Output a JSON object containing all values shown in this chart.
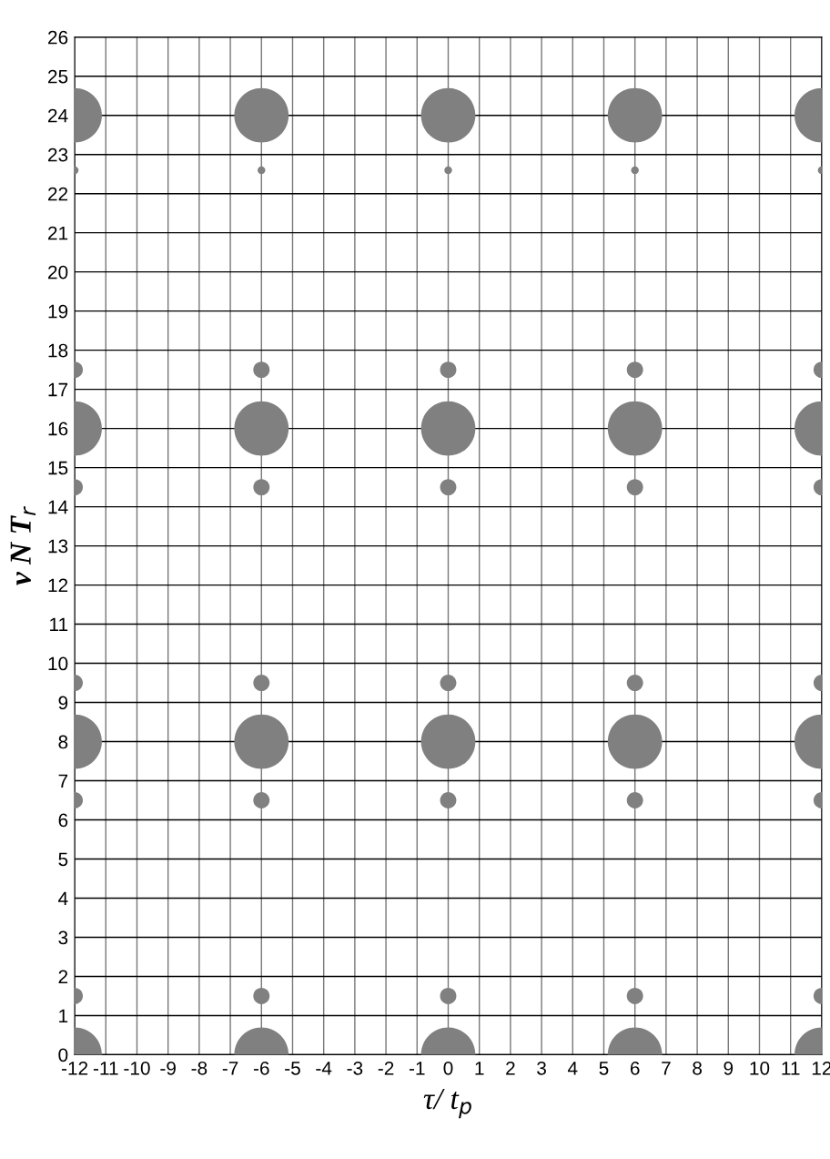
{
  "chart_data": {
    "type": "bubble",
    "xlabel": "τ/ t$_{p}$",
    "ylabel": "ν N T$_{r}$",
    "series": [
      {
        "color": "#808080",
        "x": [
          -12,
          -6,
          0,
          6,
          12,
          -12,
          -6,
          0,
          6,
          12,
          -12,
          -6,
          0,
          6,
          12,
          -12,
          -6,
          0,
          6,
          12,
          -12,
          -6,
          0,
          6,
          12,
          -12,
          -6,
          0,
          6,
          12,
          -12,
          -6,
          0,
          6,
          12,
          -12,
          -6,
          0,
          6,
          12,
          -12,
          -6,
          0,
          6,
          12,
          -12,
          -6,
          0,
          6,
          12
        ],
        "values": [
          0,
          0,
          0,
          0,
          0,
          8,
          8,
          8,
          8,
          8,
          16,
          16,
          16,
          16,
          16,
          24,
          24,
          24,
          24,
          24,
          1.5,
          1.5,
          1.5,
          1.5,
          1.5,
          6.5,
          6.5,
          6.5,
          6.5,
          6.5,
          9.5,
          9.5,
          9.5,
          9.5,
          9.5,
          14.5,
          14.5,
          14.5,
          14.5,
          14.5,
          17.5,
          17.5,
          17.5,
          17.5,
          17.5,
          22.6,
          22.6,
          22.6,
          22.6,
          22.6
        ],
        "sizes": [
          1,
          1,
          1,
          1,
          1,
          1,
          1,
          1,
          1,
          1,
          1,
          1,
          1,
          1,
          1,
          1,
          1,
          1,
          1,
          1,
          0.09,
          0.09,
          0.09,
          0.09,
          0.09,
          0.09,
          0.09,
          0.09,
          0.09,
          0.09,
          0.09,
          0.09,
          0.09,
          0.09,
          0.09,
          0.09,
          0.09,
          0.09,
          0.09,
          0.09,
          0.09,
          0.09,
          0.09,
          0.09,
          0.09,
          0.02,
          0.02,
          0.02,
          0.02,
          0.02
        ]
      }
    ],
    "marker": "circle",
    "grid": true,
    "xlim": [
      -12,
      12
    ],
    "xticks": [
      -12,
      -11,
      -10,
      -9,
      -8,
      -7,
      -6,
      -5,
      -4,
      -3,
      -2,
      -1,
      0,
      1,
      2,
      3,
      4,
      5,
      6,
      7,
      8,
      9,
      10,
      11,
      12
    ],
    "ylim": [
      0,
      26
    ],
    "yticks": [
      0,
      1,
      2,
      3,
      4,
      5,
      6,
      7,
      8,
      9,
      10,
      11,
      12,
      13,
      14,
      15,
      16,
      17,
      18,
      19,
      20,
      21,
      22,
      23,
      24,
      25,
      26
    ]
  }
}
